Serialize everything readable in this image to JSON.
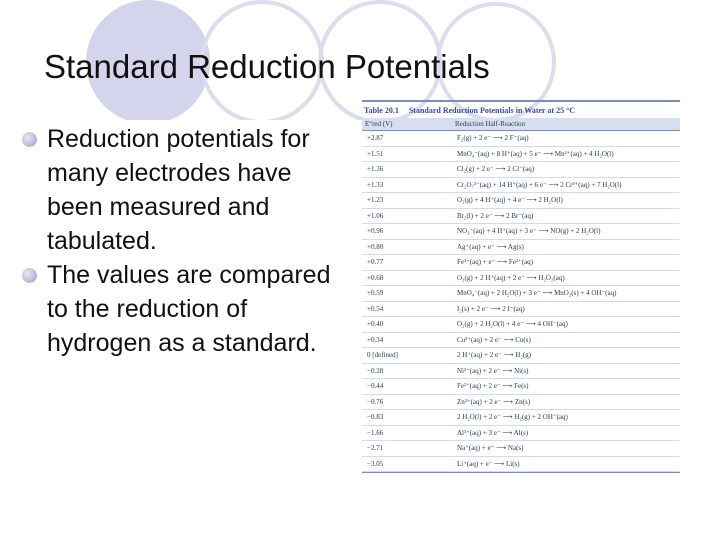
{
  "slide": {
    "title": "Standard Reduction Potentials",
    "colors": {
      "accent_circle": "#d2d2ea",
      "bullet": "#b4b4d2",
      "table_blue": "#2f4f9a"
    },
    "bullets": [
      "Reduction potentials for many electrodes have been measured and tabulated.",
      "The values are compared to the reduction of hydrogen as a standard."
    ]
  },
  "table": {
    "number": "Table 20.1",
    "title": "Standard Reduction Potentials in Water at 25 °C",
    "col_potential": "E°red (V)",
    "col_reaction": "Reduction Half-Reaction",
    "rows": [
      {
        "e": "+2.87",
        "r": "F₂(g) + 2 e⁻ ⟶ 2 F⁻(aq)"
      },
      {
        "e": "+1.51",
        "r": "MnO₄⁻(aq) + 8 H⁺(aq) + 5 e⁻ ⟶ Mn²⁺(aq) + 4 H₂O(l)"
      },
      {
        "e": "+1.36",
        "r": "Cl₂(g) + 2 e⁻ ⟶ 2 Cl⁻(aq)"
      },
      {
        "e": "+1.33",
        "r": "Cr₂O₇²⁻(aq) + 14 H⁺(aq) + 6 e⁻ ⟶ 2 Cr³⁺(aq) + 7 H₂O(l)"
      },
      {
        "e": "+1.23",
        "r": "O₂(g) + 4 H⁺(aq) + 4 e⁻ ⟶ 2 H₂O(l)"
      },
      {
        "e": "+1.06",
        "r": "Br₂(l) + 2 e⁻ ⟶ 2 Br⁻(aq)"
      },
      {
        "e": "+0.96",
        "r": "NO₃⁻(aq) + 4 H⁺(aq) + 3 e⁻ ⟶ NO(g) + 2 H₂O(l)"
      },
      {
        "e": "+0.80",
        "r": "Ag⁺(aq) + e⁻ ⟶ Ag(s)"
      },
      {
        "e": "+0.77",
        "r": "Fe³⁺(aq) + e⁻ ⟶ Fe²⁺(aq)"
      },
      {
        "e": "+0.68",
        "r": "O₂(g) + 2 H⁺(aq) + 2 e⁻ ⟶ H₂O₂(aq)"
      },
      {
        "e": "+0.59",
        "r": "MnO₄⁻(aq) + 2 H₂O(l) + 3 e⁻ ⟶ MnO₂(s) + 4 OH⁻(aq)"
      },
      {
        "e": "+0.54",
        "r": "I₂(s) + 2 e⁻ ⟶ 2 I⁻(aq)"
      },
      {
        "e": "+0.40",
        "r": "O₂(g) + 2 H₂O(l) + 4 e⁻ ⟶ 4 OH⁻(aq)"
      },
      {
        "e": "+0.34",
        "r": "Cu²⁺(aq) + 2 e⁻ ⟶ Cu(s)"
      },
      {
        "e": "0 [defined]",
        "r": "2 H⁺(aq) + 2 e⁻ ⟶ H₂(g)"
      },
      {
        "e": "−0.28",
        "r": "Ni²⁺(aq) + 2 e⁻ ⟶ Ni(s)"
      },
      {
        "e": "−0.44",
        "r": "Fe²⁺(aq) + 2 e⁻ ⟶ Fe(s)"
      },
      {
        "e": "−0.76",
        "r": "Zn²⁺(aq) + 2 e⁻ ⟶ Zn(s)"
      },
      {
        "e": "−0.83",
        "r": "2 H₂O(l) + 2 e⁻ ⟶ H₂(g) + 2 OH⁻(aq)"
      },
      {
        "e": "−1.66",
        "r": "Al³⁺(aq) + 3 e⁻ ⟶ Al(s)"
      },
      {
        "e": "−2.71",
        "r": "Na⁺(aq) + e⁻ ⟶ Na(s)"
      },
      {
        "e": "−3.05",
        "r": "Li⁺(aq) + e⁻ ⟶ Li(s)"
      }
    ]
  }
}
